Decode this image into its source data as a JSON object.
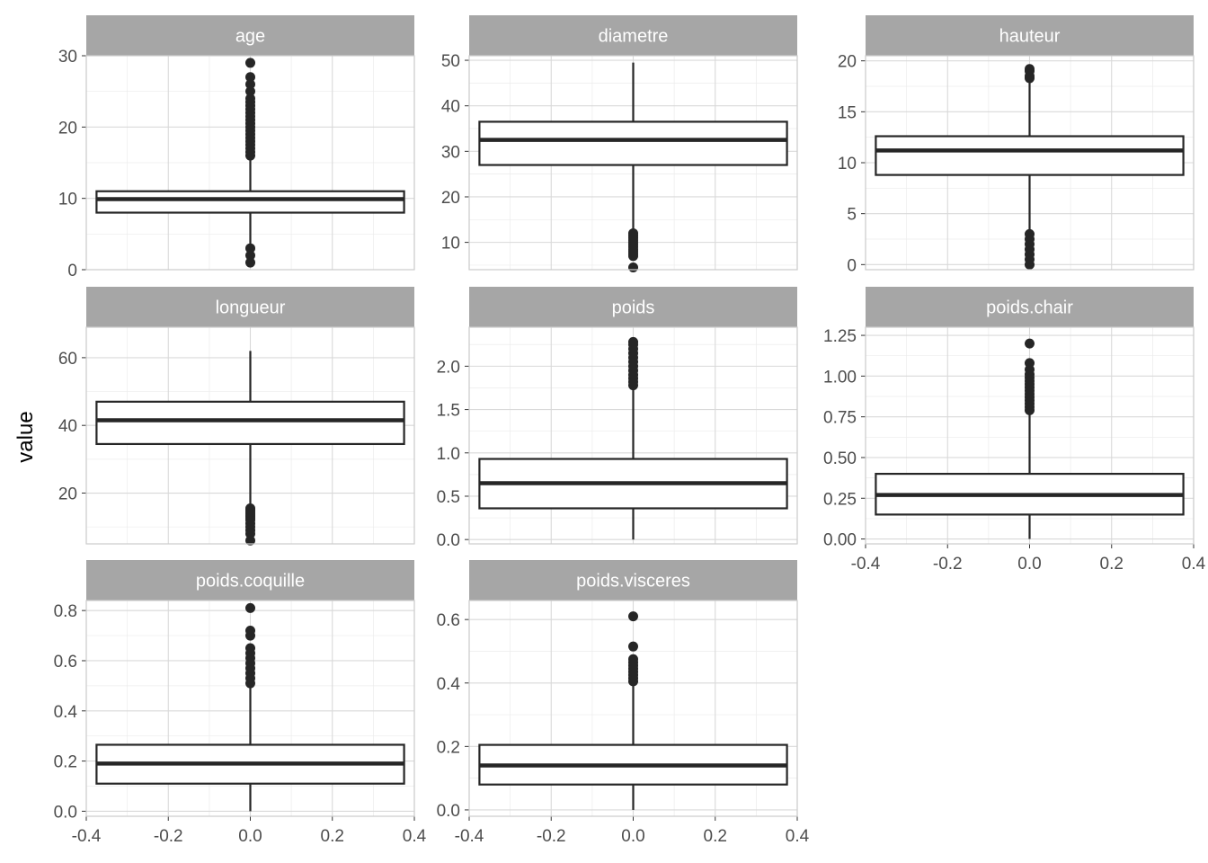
{
  "colors": {
    "strip_fill": "#a6a6a6",
    "panel_border": "#cccccc",
    "grid_major": "#d9d9d9",
    "grid_minor": "#ececec",
    "box_stroke": "#262626",
    "point": "#262626"
  },
  "ylabel": "value",
  "chart_data": {
    "type": "boxplot",
    "facet_layout": "3 columns x 3 rows, free y scales",
    "xlabel": "",
    "ylabel": "value",
    "x_axis": {
      "range": [
        -0.4,
        0.4
      ],
      "ticks": [
        -0.4,
        -0.2,
        0.0,
        0.2,
        0.4
      ],
      "tick_labels": [
        "-0.4",
        "-0.2",
        "0.0",
        "0.2",
        "0.4"
      ]
    },
    "grid": true,
    "legend": "none",
    "panels": [
      {
        "name": "age",
        "ylim": [
          0,
          30
        ],
        "yticks": [
          0,
          10,
          20,
          30
        ],
        "ytick_labels": [
          "0",
          "10",
          "20",
          "30"
        ],
        "box": {
          "q1": 8,
          "median": 9.9,
          "q3": 11,
          "whisker_low": 3.5,
          "whisker_high": 15.5
        },
        "outliers": [
          1,
          2,
          3,
          16,
          16.5,
          17,
          17.5,
          18,
          18.5,
          19,
          19.5,
          20,
          20.5,
          21,
          21.5,
          22,
          22.5,
          23,
          23.5,
          24,
          25,
          26,
          27,
          29
        ]
      },
      {
        "name": "diametre",
        "ylim": [
          4,
          51
        ],
        "yticks": [
          10,
          20,
          30,
          40,
          50
        ],
        "ytick_labels": [
          "10",
          "20",
          "30",
          "40",
          "50"
        ],
        "box": {
          "q1": 27,
          "median": 32.5,
          "q3": 36.5,
          "whisker_low": 12.5,
          "whisker_high": 49.5
        },
        "outliers": [
          4.5,
          7,
          7.5,
          8,
          8.5,
          9,
          9.5,
          10,
          10.5,
          11,
          11.5,
          12
        ]
      },
      {
        "name": "hauteur",
        "ylim": [
          -0.5,
          20.5
        ],
        "yticks": [
          0,
          5,
          10,
          15,
          20
        ],
        "ytick_labels": [
          "0",
          "5",
          "10",
          "15",
          "20"
        ],
        "box": {
          "q1": 8.8,
          "median": 11.2,
          "q3": 12.6,
          "whisker_low": 3.3,
          "whisker_high": 18
        },
        "outliers": [
          0,
          0.5,
          1,
          1.5,
          2,
          2.5,
          3,
          18.3,
          18.5,
          19,
          19.2
        ]
      },
      {
        "name": "longueur",
        "ylim": [
          5,
          69
        ],
        "yticks": [
          20,
          40,
          60
        ],
        "ytick_labels": [
          "20",
          "40",
          "60"
        ],
        "box": {
          "q1": 34.5,
          "median": 41.5,
          "q3": 47,
          "whisker_low": 16,
          "whisker_high": 62
        },
        "outliers": [
          6,
          8,
          9,
          10,
          11,
          12,
          12.5,
          13,
          13.5,
          14,
          14.5,
          15,
          15.5
        ]
      },
      {
        "name": "poids",
        "ylim": [
          -0.05,
          2.45
        ],
        "yticks": [
          0,
          0.5,
          1.0,
          1.5,
          2.0
        ],
        "ytick_labels": [
          "0.0",
          "0.5",
          "1.0",
          "1.5",
          "2.0"
        ],
        "box": {
          "q1": 0.36,
          "median": 0.65,
          "q3": 0.93,
          "whisker_low": 0.0,
          "whisker_high": 1.75
        },
        "outliers": [
          1.78,
          1.82,
          1.86,
          1.9,
          1.95,
          2.0,
          2.05,
          2.1,
          2.15,
          2.2,
          2.25,
          2.28
        ]
      },
      {
        "name": "poids.chair",
        "ylim": [
          -0.03,
          1.3
        ],
        "yticks": [
          0,
          0.25,
          0.5,
          0.75,
          1.0,
          1.25
        ],
        "ytick_labels": [
          "0.00",
          "0.25",
          "0.50",
          "0.75",
          "1.00",
          "1.25"
        ],
        "box": {
          "q1": 0.15,
          "median": 0.27,
          "q3": 0.4,
          "whisker_low": 0.0,
          "whisker_high": 0.78
        },
        "outliers": [
          0.79,
          0.81,
          0.83,
          0.85,
          0.87,
          0.89,
          0.91,
          0.93,
          0.95,
          0.97,
          0.99,
          1.01,
          1.04,
          1.08,
          1.2
        ]
      },
      {
        "name": "poids.coquille",
        "ylim": [
          -0.02,
          0.84
        ],
        "yticks": [
          0,
          0.2,
          0.4,
          0.6,
          0.8
        ],
        "ytick_labels": [
          "0.0",
          "0.2",
          "0.4",
          "0.6",
          "0.8"
        ],
        "box": {
          "q1": 0.11,
          "median": 0.19,
          "q3": 0.265,
          "whisker_low": 0.0,
          "whisker_high": 0.5
        },
        "outliers": [
          0.51,
          0.53,
          0.55,
          0.57,
          0.59,
          0.61,
          0.63,
          0.65,
          0.7,
          0.72,
          0.81
        ]
      },
      {
        "name": "poids.visceres",
        "ylim": [
          -0.02,
          0.66
        ],
        "yticks": [
          0,
          0.2,
          0.4,
          0.6
        ],
        "ytick_labels": [
          "0.0",
          "0.2",
          "0.4",
          "0.6"
        ],
        "box": {
          "q1": 0.08,
          "median": 0.14,
          "q3": 0.205,
          "whisker_low": 0.0,
          "whisker_high": 0.4
        },
        "outliers": [
          0.405,
          0.415,
          0.425,
          0.435,
          0.445,
          0.455,
          0.465,
          0.475,
          0.515,
          0.61
        ]
      }
    ]
  }
}
